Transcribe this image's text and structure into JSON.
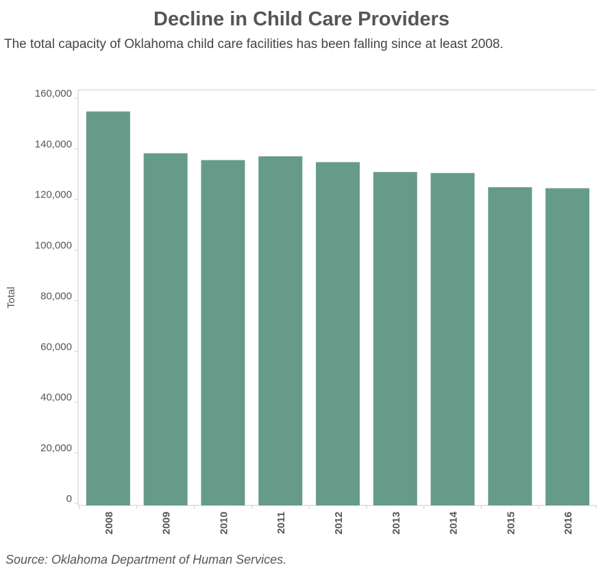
{
  "header": {
    "title": "Decline in Child Care Providers",
    "subtitle": "The total capacity of Oklahoma child care facilities has been falling since at least 2008."
  },
  "footer": {
    "source": "Source: Oklahoma Department of Human Services."
  },
  "colors": {
    "bar": "#669b89",
    "axis": "#cccccc",
    "text": "#555555"
  },
  "chart_data": {
    "type": "bar",
    "categories": [
      "2008",
      "2009",
      "2010",
      "2011",
      "2012",
      "2013",
      "2014",
      "2015",
      "2016"
    ],
    "values": [
      154700,
      138200,
      135500,
      137000,
      134700,
      130800,
      130400,
      124800,
      124400
    ],
    "ylabel": "Total",
    "xlabel": "",
    "ylim": [
      0,
      163000
    ],
    "yticks": [
      0,
      20000,
      40000,
      60000,
      80000,
      100000,
      120000,
      140000,
      160000
    ],
    "ytick_labels": [
      "0",
      "20,000",
      "40,000",
      "60,000",
      "80,000",
      "100,000",
      "120,000",
      "140,000",
      "160,000"
    ],
    "grid": false,
    "legend": "none"
  }
}
